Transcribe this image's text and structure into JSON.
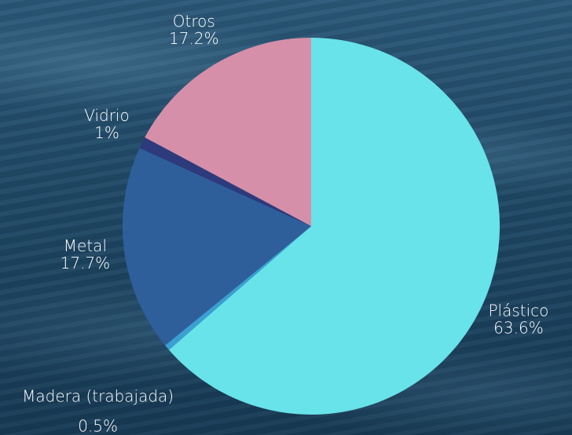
{
  "chart_data": {
    "type": "pie",
    "categories": [
      "Plástico",
      "Madera (trabajada)",
      "Metal",
      "Vidrio",
      "Otros"
    ],
    "values": [
      63.6,
      0.5,
      17.7,
      1,
      17.2
    ],
    "value_labels": [
      "63.6%",
      "0.5%",
      "17.7%",
      "1%",
      "17.2%"
    ],
    "colors": [
      "#67e3e9",
      "#3b9fd2",
      "#2f5f9b",
      "#2d3a7c",
      "#d68fa9"
    ]
  }
}
